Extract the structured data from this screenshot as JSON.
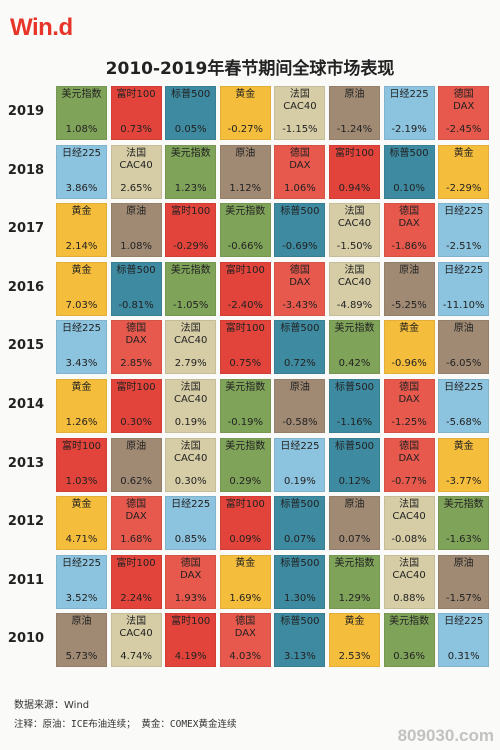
{
  "header": {
    "logo": "Win.d",
    "title": "2010-2019年春节期间全球市场表现"
  },
  "colors": {
    "美元指数": "#80a35a",
    "富时100": "#e2443b",
    "标普500": "#3e8aa0",
    "黄金": "#f5bd3c",
    "法国CAC40": "#d6cda6",
    "原油": "#a08a74",
    "日经225": "#8cc3de",
    "德国DAX": "#e8594d"
  },
  "chart_data": {
    "type": "table",
    "title": "2010-2019年春节期间全球市场表现",
    "rows": [
      {
        "year": "2019",
        "cells": [
          {
            "name": "美元指数",
            "value": "1.08%"
          },
          {
            "name": "富时100",
            "value": "0.73%"
          },
          {
            "name": "标普500",
            "value": "0.05%"
          },
          {
            "name": "黄金",
            "value": "-0.27%"
          },
          {
            "name": "法国CAC40",
            "value": "-1.15%"
          },
          {
            "name": "原油",
            "value": "-1.24%"
          },
          {
            "name": "日经225",
            "value": "-2.19%"
          },
          {
            "name": "德国DAX",
            "value": "-2.45%"
          }
        ]
      },
      {
        "year": "2018",
        "cells": [
          {
            "name": "日经225",
            "value": "3.86%"
          },
          {
            "name": "法国CAC40",
            "value": "2.65%"
          },
          {
            "name": "美元指数",
            "value": "1.23%"
          },
          {
            "name": "原油",
            "value": "1.12%"
          },
          {
            "name": "德国DAX",
            "value": "1.06%"
          },
          {
            "name": "富时100",
            "value": "0.94%"
          },
          {
            "name": "标普500",
            "value": "0.10%"
          },
          {
            "name": "黄金",
            "value": "-2.29%"
          }
        ]
      },
      {
        "year": "2017",
        "cells": [
          {
            "name": "黄金",
            "value": "2.14%"
          },
          {
            "name": "原油",
            "value": "1.08%"
          },
          {
            "name": "富时100",
            "value": "-0.29%"
          },
          {
            "name": "美元指数",
            "value": "-0.66%"
          },
          {
            "name": "标普500",
            "value": "-0.69%"
          },
          {
            "name": "法国CAC40",
            "value": "-1.50%"
          },
          {
            "name": "德国DAX",
            "value": "-1.86%"
          },
          {
            "name": "日经225",
            "value": "-2.51%"
          }
        ]
      },
      {
        "year": "2016",
        "cells": [
          {
            "name": "黄金",
            "value": "7.03%"
          },
          {
            "name": "标普500",
            "value": "-0.81%"
          },
          {
            "name": "美元指数",
            "value": "-1.05%"
          },
          {
            "name": "富时100",
            "value": "-2.40%"
          },
          {
            "name": "德国DAX",
            "value": "-3.43%"
          },
          {
            "name": "法国CAC40",
            "value": "-4.89%"
          },
          {
            "name": "原油",
            "value": "-5.25%"
          },
          {
            "name": "日经225",
            "value": "-11.10%"
          }
        ]
      },
      {
        "year": "2015",
        "cells": [
          {
            "name": "日经225",
            "value": "3.43%"
          },
          {
            "name": "德国DAX",
            "value": "2.85%"
          },
          {
            "name": "法国CAC40",
            "value": "2.79%"
          },
          {
            "name": "富时100",
            "value": "0.75%"
          },
          {
            "name": "标普500",
            "value": "0.72%"
          },
          {
            "name": "美元指数",
            "value": "0.42%"
          },
          {
            "name": "黄金",
            "value": "-0.96%"
          },
          {
            "name": "原油",
            "value": "-6.05%"
          }
        ]
      },
      {
        "year": "2014",
        "cells": [
          {
            "name": "黄金",
            "value": "1.26%"
          },
          {
            "name": "富时100",
            "value": "0.30%"
          },
          {
            "name": "法国CAC40",
            "value": "0.19%"
          },
          {
            "name": "美元指数",
            "value": "-0.19%"
          },
          {
            "name": "原油",
            "value": "-0.58%"
          },
          {
            "name": "标普500",
            "value": "-1.16%"
          },
          {
            "name": "德国DAX",
            "value": "-1.25%"
          },
          {
            "name": "日经225",
            "value": "-5.68%"
          }
        ]
      },
      {
        "year": "2013",
        "cells": [
          {
            "name": "富时100",
            "value": "1.03%"
          },
          {
            "name": "原油",
            "value": "0.62%"
          },
          {
            "name": "法国CAC40",
            "value": "0.30%"
          },
          {
            "name": "美元指数",
            "value": "0.29%"
          },
          {
            "name": "日经225",
            "value": "0.19%"
          },
          {
            "name": "标普500",
            "value": "0.12%"
          },
          {
            "name": "德国DAX",
            "value": "-0.77%"
          },
          {
            "name": "黄金",
            "value": "-3.77%"
          }
        ]
      },
      {
        "year": "2012",
        "cells": [
          {
            "name": "黄金",
            "value": "4.71%"
          },
          {
            "name": "德国DAX",
            "value": "1.68%"
          },
          {
            "name": "日经225",
            "value": "0.85%"
          },
          {
            "name": "富时100",
            "value": "0.09%"
          },
          {
            "name": "标普500",
            "value": "0.07%"
          },
          {
            "name": "原油",
            "value": "0.07%"
          },
          {
            "name": "法国CAC40",
            "value": "-0.08%"
          },
          {
            "name": "美元指数",
            "value": "-1.63%"
          }
        ]
      },
      {
        "year": "2011",
        "cells": [
          {
            "name": "日经225",
            "value": "3.52%"
          },
          {
            "name": "富时100",
            "value": "2.24%"
          },
          {
            "name": "德国DAX",
            "value": "1.93%"
          },
          {
            "name": "黄金",
            "value": "1.69%"
          },
          {
            "name": "标普500",
            "value": "1.30%"
          },
          {
            "name": "美元指数",
            "value": "1.29%"
          },
          {
            "name": "法国CAC40",
            "value": "0.88%"
          },
          {
            "name": "原油",
            "value": "-1.57%"
          }
        ]
      },
      {
        "year": "2010",
        "cells": [
          {
            "name": "原油",
            "value": "5.73%"
          },
          {
            "name": "法国CAC40",
            "value": "4.74%"
          },
          {
            "name": "富时100",
            "value": "4.19%"
          },
          {
            "name": "德国DAX",
            "value": "4.03%"
          },
          {
            "name": "标普500",
            "value": "3.13%"
          },
          {
            "name": "黄金",
            "value": "2.53%"
          },
          {
            "name": "美元指数",
            "value": "0.36%"
          },
          {
            "name": "日经225",
            "value": "0.31%"
          }
        ]
      }
    ]
  },
  "footer": {
    "source": "数据来源：Wind",
    "note": "注释：原油：ICE布油连续；  黄金：COMEX黄金连续",
    "watermark": "809030.com"
  }
}
